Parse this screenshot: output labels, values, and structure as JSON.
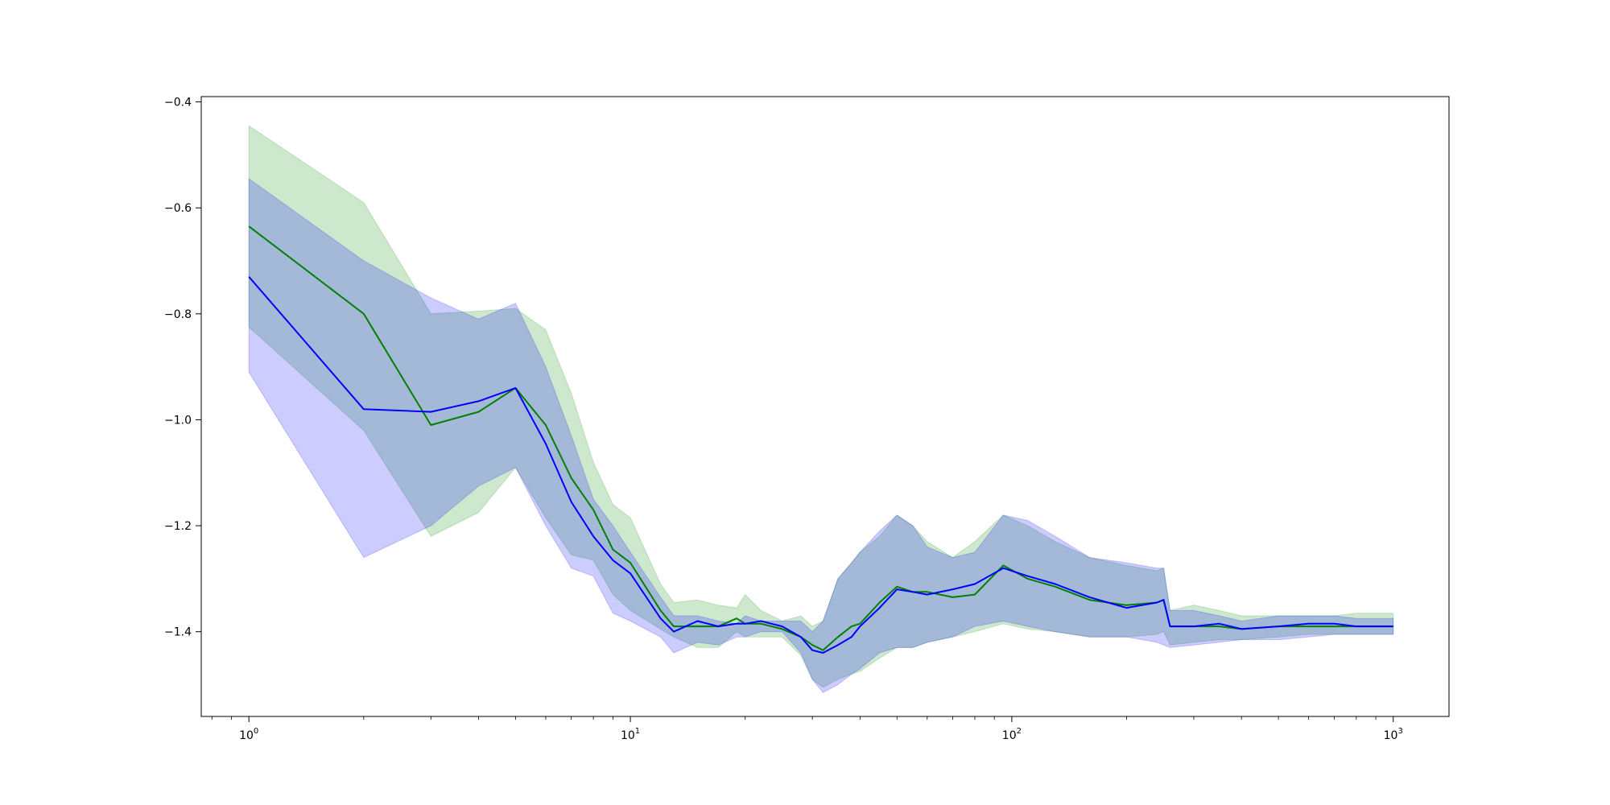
{
  "chart_data": {
    "type": "line",
    "title": "",
    "xlabel": "",
    "ylabel": "",
    "xscale": "log",
    "xlim": [
      0.75,
      1400
    ],
    "ylim": [
      -1.56,
      -0.39
    ],
    "grid": false,
    "legend": "none",
    "x_ticks": [
      {
        "base": "10",
        "exp": "0",
        "value": 1
      },
      {
        "base": "10",
        "exp": "1",
        "value": 10
      },
      {
        "base": "10",
        "exp": "2",
        "value": 100
      },
      {
        "base": "10",
        "exp": "3",
        "value": 1000
      }
    ],
    "y_ticks": [
      {
        "label": "−0.4",
        "value": -0.4
      },
      {
        "label": "−0.6",
        "value": -0.6
      },
      {
        "label": "−0.8",
        "value": -0.8
      },
      {
        "label": "−1.0",
        "value": -1.0
      },
      {
        "label": "−1.2",
        "value": -1.2
      },
      {
        "label": "−1.4",
        "value": -1.4
      }
    ],
    "series": [
      {
        "color": "#008000",
        "band_color": "#2ca02c",
        "band_opacity": 0.24,
        "x": [
          1,
          2,
          3,
          4,
          5,
          6,
          7,
          8,
          9,
          10,
          12,
          13,
          15,
          17,
          19,
          20,
          22,
          25,
          28,
          30,
          32,
          35,
          38,
          40,
          45,
          50,
          55,
          60,
          70,
          80,
          95,
          110,
          130,
          160,
          200,
          240,
          250,
          260,
          300,
          350,
          400,
          500,
          600,
          700,
          800,
          1000
        ],
        "mean": [
          -0.635,
          -0.8,
          -1.01,
          -0.985,
          -0.94,
          -1.01,
          -1.11,
          -1.17,
          -1.245,
          -1.27,
          -1.36,
          -1.39,
          -1.39,
          -1.39,
          -1.375,
          -1.385,
          -1.385,
          -1.395,
          -1.41,
          -1.425,
          -1.435,
          -1.41,
          -1.39,
          -1.385,
          -1.345,
          -1.315,
          -1.325,
          -1.325,
          -1.335,
          -1.33,
          -1.275,
          -1.3,
          -1.315,
          -1.34,
          -1.35,
          -1.345,
          -1.34,
          -1.39,
          -1.39,
          -1.39,
          -1.395,
          -1.39,
          -1.39,
          -1.39,
          -1.39,
          -1.39
        ],
        "upper": [
          -0.445,
          -0.59,
          -0.8,
          -0.795,
          -0.79,
          -0.83,
          -0.95,
          -1.08,
          -1.16,
          -1.185,
          -1.31,
          -1.345,
          -1.34,
          -1.35,
          -1.355,
          -1.33,
          -1.36,
          -1.38,
          -1.37,
          -1.39,
          -1.38,
          -1.3,
          -1.27,
          -1.25,
          -1.22,
          -1.18,
          -1.2,
          -1.23,
          -1.26,
          -1.23,
          -1.18,
          -1.2,
          -1.23,
          -1.26,
          -1.275,
          -1.285,
          -1.28,
          -1.36,
          -1.35,
          -1.36,
          -1.37,
          -1.37,
          -1.37,
          -1.37,
          -1.365,
          -1.365
        ],
        "lower": [
          -0.825,
          -1.02,
          -1.22,
          -1.175,
          -1.09,
          -1.185,
          -1.255,
          -1.265,
          -1.33,
          -1.36,
          -1.395,
          -1.41,
          -1.43,
          -1.43,
          -1.4,
          -1.41,
          -1.41,
          -1.41,
          -1.445,
          -1.49,
          -1.505,
          -1.49,
          -1.48,
          -1.475,
          -1.45,
          -1.43,
          -1.43,
          -1.42,
          -1.41,
          -1.4,
          -1.385,
          -1.395,
          -1.4,
          -1.41,
          -1.41,
          -1.405,
          -1.4,
          -1.425,
          -1.42,
          -1.415,
          -1.415,
          -1.41,
          -1.405,
          -1.405,
          -1.405,
          -1.405
        ]
      },
      {
        "color": "#0000ff",
        "band_color": "#0000ff",
        "band_opacity": 0.2,
        "x": [
          1,
          2,
          3,
          4,
          5,
          6,
          7,
          8,
          9,
          10,
          12,
          13,
          15,
          17,
          19,
          20,
          22,
          25,
          28,
          30,
          32,
          35,
          38,
          40,
          45,
          50,
          55,
          60,
          70,
          80,
          95,
          110,
          130,
          160,
          200,
          240,
          250,
          260,
          300,
          350,
          400,
          500,
          600,
          700,
          800,
          1000
        ],
        "mean": [
          -0.73,
          -0.98,
          -0.985,
          -0.965,
          -0.94,
          -1.045,
          -1.155,
          -1.22,
          -1.265,
          -1.29,
          -1.375,
          -1.4,
          -1.38,
          -1.39,
          -1.385,
          -1.385,
          -1.38,
          -1.39,
          -1.41,
          -1.435,
          -1.44,
          -1.425,
          -1.41,
          -1.39,
          -1.355,
          -1.32,
          -1.325,
          -1.33,
          -1.32,
          -1.31,
          -1.28,
          -1.295,
          -1.31,
          -1.335,
          -1.355,
          -1.345,
          -1.34,
          -1.39,
          -1.39,
          -1.385,
          -1.395,
          -1.39,
          -1.385,
          -1.385,
          -1.39,
          -1.39
        ],
        "upper": [
          -0.545,
          -0.7,
          -0.77,
          -0.81,
          -0.78,
          -0.9,
          -1.03,
          -1.15,
          -1.2,
          -1.25,
          -1.335,
          -1.37,
          -1.37,
          -1.38,
          -1.385,
          -1.37,
          -1.38,
          -1.38,
          -1.38,
          -1.4,
          -1.38,
          -1.3,
          -1.27,
          -1.25,
          -1.21,
          -1.18,
          -1.2,
          -1.24,
          -1.26,
          -1.25,
          -1.18,
          -1.19,
          -1.22,
          -1.26,
          -1.27,
          -1.28,
          -1.28,
          -1.36,
          -1.36,
          -1.37,
          -1.38,
          -1.37,
          -1.37,
          -1.37,
          -1.375,
          -1.375
        ],
        "lower": [
          -0.91,
          -1.26,
          -1.2,
          -1.125,
          -1.09,
          -1.2,
          -1.28,
          -1.295,
          -1.365,
          -1.38,
          -1.41,
          -1.44,
          -1.42,
          -1.425,
          -1.41,
          -1.41,
          -1.4,
          -1.4,
          -1.44,
          -1.49,
          -1.515,
          -1.5,
          -1.48,
          -1.47,
          -1.44,
          -1.43,
          -1.43,
          -1.42,
          -1.41,
          -1.39,
          -1.38,
          -1.39,
          -1.4,
          -1.41,
          -1.41,
          -1.42,
          -1.425,
          -1.43,
          -1.425,
          -1.42,
          -1.415,
          -1.415,
          -1.41,
          -1.405,
          -1.405,
          -1.405
        ]
      }
    ]
  }
}
